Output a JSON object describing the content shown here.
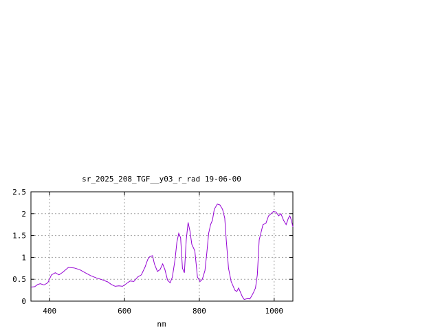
{
  "chart_data": {
    "type": "line",
    "title": "sr_2025_208_TGF__y03_r_rad 19-06-00",
    "xlabel": "nm",
    "ylabel": "",
    "xlim": [
      350,
      1050
    ],
    "ylim": [
      0,
      2.5
    ],
    "grid": true,
    "x_ticks": [
      400,
      600,
      800,
      1000
    ],
    "x_tick_labels": [
      "400",
      "600",
      "800",
      "1000"
    ],
    "y_ticks": [
      0,
      0.5,
      1,
      1.5,
      2,
      2.5
    ],
    "y_tick_labels": [
      "0",
      "0.5",
      "1",
      "1.5",
      "2",
      "2.5"
    ],
    "series": [
      {
        "color": "#9400d3",
        "x": [
          350,
          360,
          368,
          375,
          385,
          395,
          405,
          415,
          425,
          435,
          450,
          465,
          480,
          495,
          510,
          525,
          540,
          555,
          565,
          575,
          585,
          595,
          605,
          615,
          625,
          635,
          645,
          655,
          662,
          668,
          675,
          680,
          688,
          695,
          702,
          708,
          715,
          722,
          728,
          735,
          740,
          745,
          750,
          755,
          760,
          765,
          770,
          775,
          780,
          788,
          795,
          802,
          808,
          815,
          820,
          825,
          830,
          835,
          840,
          848,
          855,
          862,
          868,
          872,
          878,
          885,
          890,
          895,
          900,
          905,
          910,
          915,
          920,
          925,
          930,
          935,
          940,
          945,
          950,
          955,
          960,
          970,
          978,
          985,
          992,
          998,
          1005,
          1012,
          1018,
          1025,
          1032,
          1038,
          1042,
          1046,
          1050
        ],
        "y": [
          0.32,
          0.33,
          0.38,
          0.4,
          0.37,
          0.42,
          0.6,
          0.65,
          0.6,
          0.66,
          0.77,
          0.76,
          0.72,
          0.65,
          0.58,
          0.53,
          0.49,
          0.44,
          0.38,
          0.34,
          0.35,
          0.34,
          0.4,
          0.46,
          0.45,
          0.55,
          0.6,
          0.78,
          0.95,
          1.02,
          1.04,
          0.85,
          0.68,
          0.72,
          0.85,
          0.72,
          0.48,
          0.42,
          0.55,
          0.95,
          1.35,
          1.55,
          1.45,
          0.75,
          0.65,
          1.4,
          1.8,
          1.6,
          1.3,
          1.15,
          0.55,
          0.45,
          0.5,
          0.7,
          1.1,
          1.55,
          1.75,
          1.85,
          2.1,
          2.22,
          2.2,
          2.1,
          1.9,
          1.4,
          0.75,
          0.45,
          0.35,
          0.25,
          0.22,
          0.3,
          0.2,
          0.1,
          0.04,
          0.05,
          0.06,
          0.05,
          0.12,
          0.2,
          0.3,
          0.6,
          1.4,
          1.75,
          1.78,
          1.95,
          2.0,
          2.05,
          2.04,
          1.95,
          2.0,
          1.85,
          1.75,
          1.9,
          1.95,
          1.85,
          1.7
        ]
      }
    ]
  }
}
